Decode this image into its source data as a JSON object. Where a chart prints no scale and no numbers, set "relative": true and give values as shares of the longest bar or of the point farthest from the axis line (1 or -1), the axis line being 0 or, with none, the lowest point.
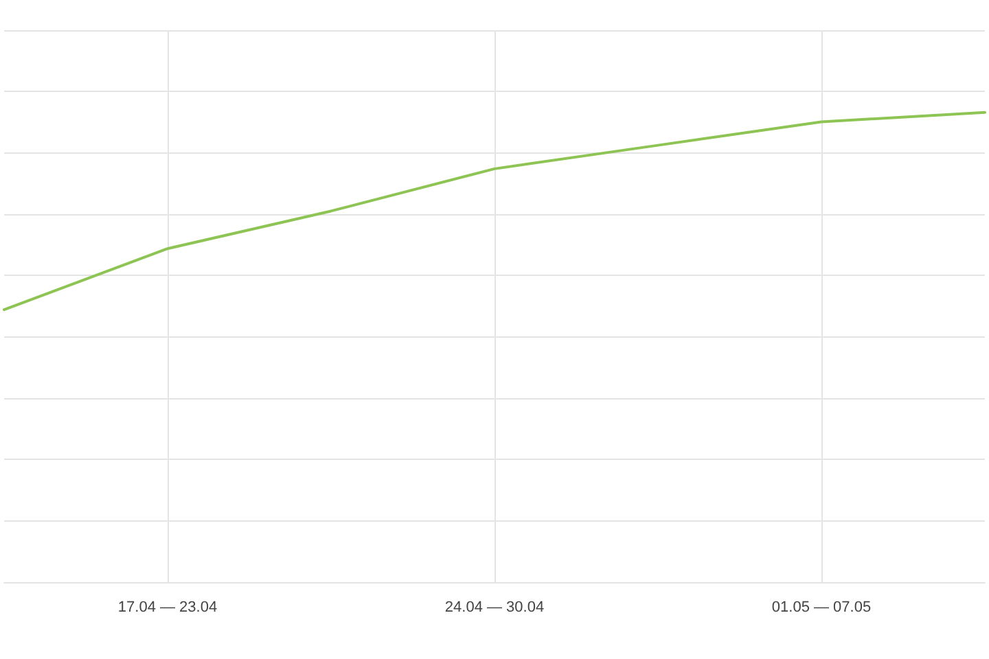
{
  "chart_data": {
    "type": "line",
    "relative": true,
    "categories": [
      null,
      "17.04 — 23.04",
      null,
      "24.04 — 30.04",
      null,
      "01.05 — 07.05",
      null
    ],
    "series": [
      {
        "color": "#8dc453",
        "values": [
          0.58,
          0.71,
          0.79,
          0.88,
          0.93,
          0.98,
          1
        ]
      }
    ],
    "grid": true,
    "marker": "none"
  }
}
